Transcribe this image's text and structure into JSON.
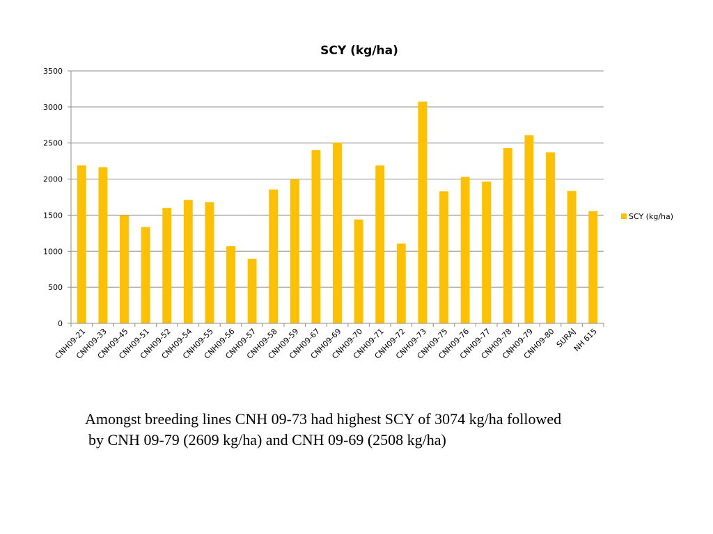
{
  "chart_data": {
    "type": "bar",
    "title": "SCY (kg/ha)",
    "xlabel": "",
    "ylabel": "",
    "ylim": [
      0,
      3500
    ],
    "yticks": [
      0,
      500,
      1000,
      1500,
      2000,
      2500,
      3000,
      3500
    ],
    "grid": true,
    "legend_position": "right",
    "categories": [
      "CNH09-21",
      "CNH09-33",
      "CNH09-45",
      "CNH09-51",
      "CNH09-52",
      "CNH09-54",
      "CNH09-55",
      "CNH09-56",
      "CNH09-57",
      "CNH09-58",
      "CNH09-59",
      "CNH09-67",
      "CNH09-69",
      "CNH09-70",
      "CNH09-71",
      "CNH09-72",
      "CNH09-73",
      "CNH09-75",
      "CNH09-76",
      "CNH09-77",
      "CNH09-78",
      "CNH09-79",
      "CNH09-80",
      "SURAJ",
      "NH 615"
    ],
    "series": [
      {
        "name": "SCY (kg/ha)",
        "color": "#FFC000",
        "values": [
          2190,
          2165,
          1500,
          1335,
          1600,
          1710,
          1680,
          1070,
          895,
          1855,
          2000,
          2400,
          2508,
          1440,
          2190,
          1105,
          3074,
          1830,
          2030,
          1965,
          2430,
          2609,
          2370,
          1835,
          1555
        ]
      }
    ]
  },
  "caption": {
    "line1": "Amongst breeding lines CNH 09-73 had highest SCY of 3074 kg/ha followed",
    "line2": "by CNH 09-79 (2609 kg/ha) and CNH 09-69 (2508 kg/ha)"
  }
}
